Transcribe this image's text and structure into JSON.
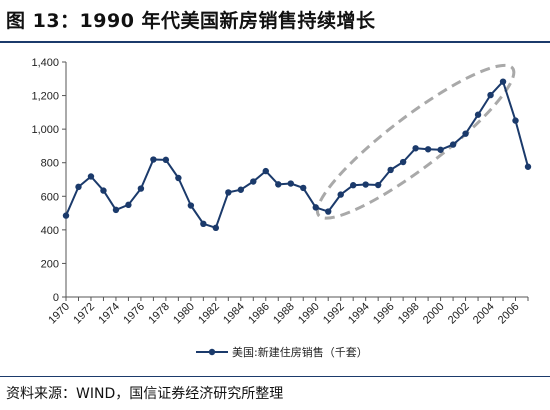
{
  "title": "图 13：1990 年代美国新房销售持续增长",
  "source": "资料来源：WIND，国信证券经济研究所整理",
  "colors": {
    "series": "#1b3a6b",
    "highlight": "#a9a9a9",
    "rule": "#1b3a6b"
  },
  "chart_data": {
    "type": "line",
    "title": "",
    "xlabel": "",
    "ylabel": "",
    "ylim": [
      0,
      1400
    ],
    "yticks": [
      0,
      200,
      400,
      600,
      800,
      1000,
      1200,
      1400
    ],
    "ytick_labels": [
      "0",
      "200",
      "400",
      "600",
      "800",
      "1,000",
      "1,200",
      "1,400"
    ],
    "xlim": [
      1970,
      2007
    ],
    "xticks": [
      1970,
      1972,
      1974,
      1976,
      1978,
      1980,
      1982,
      1984,
      1986,
      1988,
      1990,
      1992,
      1994,
      1996,
      1998,
      2000,
      2002,
      2004,
      2006
    ],
    "grid": false,
    "legend_position": "bottom",
    "series": [
      {
        "name": "美国:新建住房销售（千套）",
        "x": [
          1970,
          1971,
          1972,
          1973,
          1974,
          1975,
          1976,
          1977,
          1978,
          1979,
          1980,
          1981,
          1982,
          1983,
          1984,
          1985,
          1986,
          1987,
          1988,
          1989,
          1990,
          1991,
          1992,
          1993,
          1994,
          1995,
          1996,
          1997,
          1998,
          1999,
          2000,
          2001,
          2002,
          2003,
          2004,
          2005,
          2006,
          2007
        ],
        "values": [
          485,
          656,
          718,
          634,
          519,
          549,
          646,
          819,
          817,
          709,
          545,
          436,
          412,
          623,
          639,
          688,
          750,
          671,
          676,
          650,
          534,
          509,
          610,
          666,
          670,
          667,
          757,
          804,
          886,
          880,
          877,
          908,
          973,
          1086,
          1203,
          1283,
          1051,
          776
        ]
      }
    ],
    "annotations": [
      {
        "type": "dashed-ellipse",
        "x_range": [
          1991,
          2005
        ],
        "y_range": [
          530,
          1320
        ]
      }
    ]
  }
}
